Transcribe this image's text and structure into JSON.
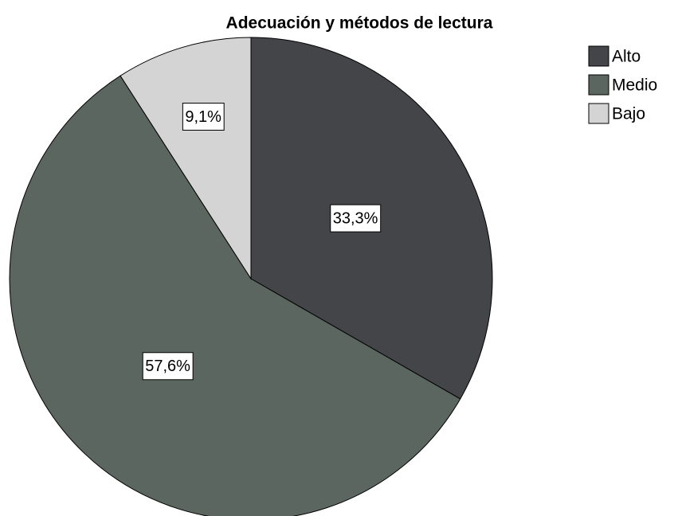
{
  "chart_data": {
    "type": "pie",
    "title": "Adecuación y métodos de lectura",
    "categories": [
      "Alto",
      "Medio",
      "Bajo"
    ],
    "values": [
      33.3,
      57.6,
      9.1
    ],
    "value_labels": [
      "33,3%",
      "57,6%",
      "9,1%"
    ],
    "colors": [
      "#444548",
      "#5b6660",
      "#d4d4d4"
    ],
    "legend": "top-right"
  }
}
